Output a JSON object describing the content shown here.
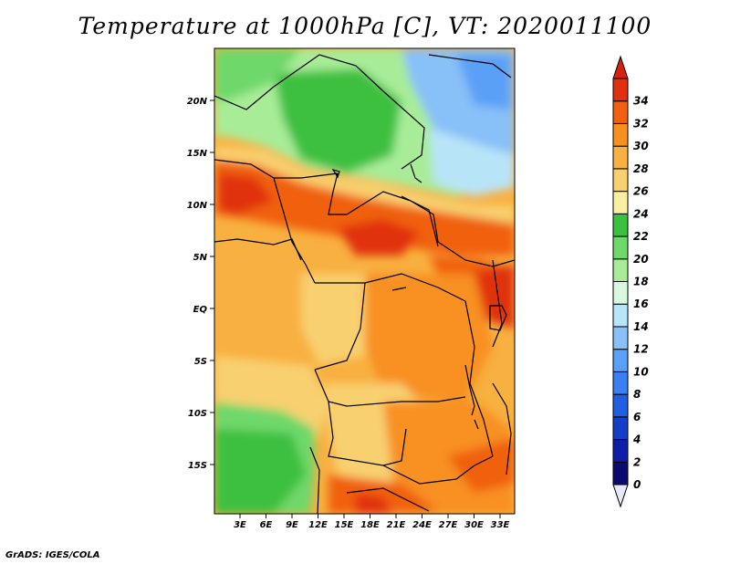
{
  "title": "Temperature at 1000hPa [C], VT: 2020011100",
  "credit": "GrADS: IGES/COLA",
  "map": {
    "lat_labels": [
      "20N",
      "15N",
      "10N",
      "5N",
      "EQ",
      "5S",
      "10S",
      "15S"
    ],
    "lon_labels": [
      "3E",
      "6E",
      "9E",
      "12E",
      "15E",
      "18E",
      "21E",
      "24E",
      "27E",
      "30E",
      "33E"
    ]
  },
  "colorbar": {
    "levels": [
      "0",
      "2",
      "4",
      "6",
      "8",
      "10",
      "12",
      "14",
      "16",
      "18",
      "20",
      "22",
      "24",
      "26",
      "28",
      "30",
      "32",
      "34"
    ],
    "colors": [
      "#0a0a70",
      "#0f1ea8",
      "#1440c8",
      "#2060e0",
      "#3a80f0",
      "#5aa0f6",
      "#88c0f8",
      "#b8e4f8",
      "#d8f8e0",
      "#a8ec98",
      "#6ed86a",
      "#3cc040",
      "#f8f0a0",
      "#f8d070",
      "#f8b040",
      "#f89020",
      "#f06010",
      "#e03010"
    ],
    "under_color": "#e8e8fa",
    "over_color": "#d82010"
  }
}
